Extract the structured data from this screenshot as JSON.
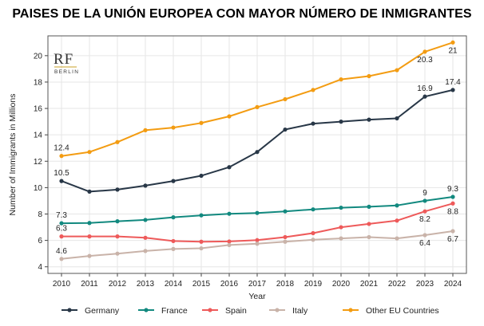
{
  "chart_data": {
    "type": "line",
    "title": "PAISES DE LA UNIÓN EUROPEA CON MAYOR NÚMERO DE INMIGRANTES",
    "xlabel": "Year",
    "ylabel": "Number of Immigrants in Millions",
    "x": [
      2010,
      2011,
      2012,
      2013,
      2014,
      2015,
      2016,
      2017,
      2018,
      2019,
      2020,
      2021,
      2022,
      2023,
      2024
    ],
    "ylim": [
      3.5,
      21.5
    ],
    "yticks": [
      4,
      6,
      8,
      10,
      12,
      14,
      16,
      18,
      20
    ],
    "grid": true,
    "legend_position": "bottom",
    "series": [
      {
        "name": "Germany",
        "color": "#283747",
        "values": [
          10.5,
          9.7,
          9.85,
          10.15,
          10.5,
          10.9,
          11.55,
          12.7,
          14.4,
          14.85,
          15.0,
          15.15,
          15.25,
          16.9,
          17.4
        ]
      },
      {
        "name": "France",
        "color": "#12897f",
        "values": [
          7.3,
          7.32,
          7.45,
          7.55,
          7.75,
          7.9,
          8.02,
          8.08,
          8.2,
          8.35,
          8.48,
          8.55,
          8.65,
          9.0,
          9.3
        ]
      },
      {
        "name": "Spain",
        "color": "#ee5a5a",
        "values": [
          6.3,
          6.3,
          6.3,
          6.2,
          5.95,
          5.9,
          5.92,
          6.02,
          6.25,
          6.55,
          7.0,
          7.25,
          7.5,
          8.2,
          8.8
        ]
      },
      {
        "name": "Italy",
        "color": "#c9b3a9",
        "values": [
          4.6,
          4.82,
          5.0,
          5.2,
          5.35,
          5.4,
          5.65,
          5.75,
          5.9,
          6.05,
          6.15,
          6.25,
          6.15,
          6.4,
          6.7
        ]
      },
      {
        "name": "Other EU Countries",
        "color": "#f39c12",
        "values": [
          12.4,
          12.7,
          13.45,
          14.35,
          14.55,
          14.9,
          15.4,
          16.1,
          16.7,
          17.4,
          18.2,
          18.45,
          18.9,
          20.3,
          21.0
        ]
      }
    ],
    "annotations": [
      {
        "text": "12.4",
        "x": 2010,
        "y": 12.4,
        "pos": "above"
      },
      {
        "text": "10.5",
        "x": 2010,
        "y": 10.5,
        "pos": "above"
      },
      {
        "text": "7.3",
        "x": 2010,
        "y": 7.3,
        "pos": "above"
      },
      {
        "text": "6.3",
        "x": 2010,
        "y": 6.3,
        "pos": "above"
      },
      {
        "text": "4.6",
        "x": 2010,
        "y": 4.6,
        "pos": "above"
      },
      {
        "text": "16.9",
        "x": 2023,
        "y": 16.9,
        "pos": "above"
      },
      {
        "text": "17.4",
        "x": 2024,
        "y": 17.4,
        "pos": "above"
      },
      {
        "text": "9",
        "x": 2023,
        "y": 9.0,
        "pos": "above"
      },
      {
        "text": "9.3",
        "x": 2024,
        "y": 9.3,
        "pos": "above"
      },
      {
        "text": "8.2",
        "x": 2023,
        "y": 8.2,
        "pos": "below"
      },
      {
        "text": "8.8",
        "x": 2024,
        "y": 8.8,
        "pos": "below"
      },
      {
        "text": "6.4",
        "x": 2023,
        "y": 6.4,
        "pos": "below"
      },
      {
        "text": "6.7",
        "x": 2024,
        "y": 6.7,
        "pos": "below"
      },
      {
        "text": "20.3",
        "x": 2023,
        "y": 20.3,
        "pos": "below"
      },
      {
        "text": "21",
        "x": 2024,
        "y": 21.0,
        "pos": "below"
      }
    ]
  },
  "logo": {
    "mark": "RF",
    "sub": "BERLIN",
    "accent_color": "#c9a227"
  }
}
